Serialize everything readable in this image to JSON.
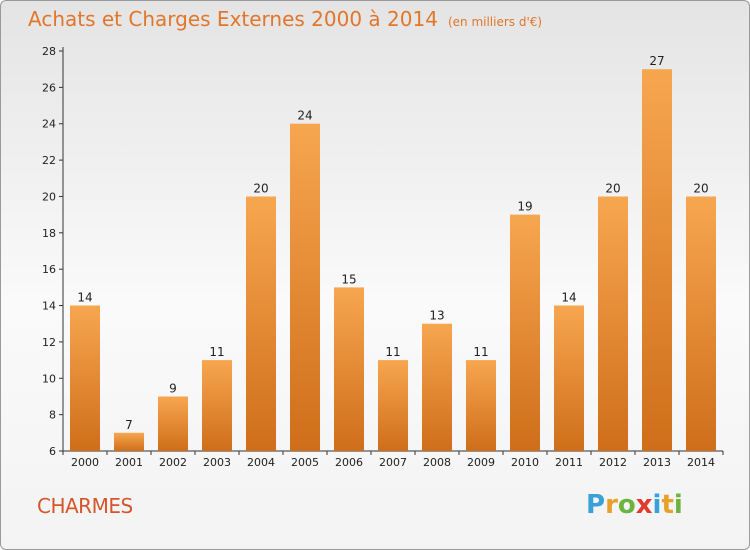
{
  "header": {
    "title": "Achats et Charges Externes 2000 à 2014",
    "unit": "(en milliers d'€)"
  },
  "commune": "CHARMES",
  "logo": {
    "text": "Proxiti",
    "letters": [
      {
        "ch": "P",
        "color": "#3aa0d8"
      },
      {
        "ch": "r",
        "color": "#e8a02a"
      },
      {
        "ch": "o",
        "color": "#6cb33f"
      },
      {
        "ch": "x",
        "color": "#e03a2f"
      },
      {
        "ch": "i",
        "color": "#3aa0d8"
      },
      {
        "ch": "t",
        "color": "#e8a02a"
      },
      {
        "ch": "i",
        "color": "#6cb33f"
      }
    ]
  },
  "chart_data": {
    "type": "bar",
    "categories": [
      "2000",
      "2001",
      "2002",
      "2003",
      "2004",
      "2005",
      "2006",
      "2007",
      "2008",
      "2009",
      "2010",
      "2011",
      "2012",
      "2013",
      "2014"
    ],
    "values": [
      14,
      7,
      9,
      11,
      20,
      24,
      15,
      11,
      13,
      11,
      19,
      14,
      20,
      27,
      20
    ],
    "title": "Achats et Charges Externes 2000 à 2014",
    "xlabel": "",
    "ylabel": "",
    "ylim": [
      6,
      28
    ],
    "yticks": [
      6,
      8,
      10,
      12,
      14,
      16,
      18,
      20,
      22,
      24,
      26,
      28
    ],
    "grid": false,
    "bar_color_top": "#f7a650",
    "bar_color_bottom": "#cf6e1a"
  }
}
